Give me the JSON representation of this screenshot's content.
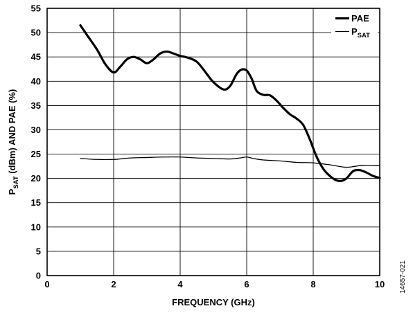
{
  "chart_data": {
    "type": "line",
    "xlabel": "FREQUENCY (GHz)",
    "ylabel": {
      "parts": [
        "P",
        "SAT",
        " (dBm) AND PAE (%)"
      ]
    },
    "xlim": [
      0,
      10
    ],
    "ylim": [
      0,
      55
    ],
    "xticks": [
      0,
      2,
      4,
      6,
      8,
      10
    ],
    "yticks": [
      0,
      5,
      10,
      15,
      20,
      25,
      30,
      35,
      40,
      45,
      50,
      55
    ],
    "grid": true,
    "legend_position": "top-right",
    "figure_id": "14657-021",
    "series": [
      {
        "name": "PAE",
        "name_parts": [
          "PAE",
          ""
        ],
        "color": "#000000",
        "style": "thick",
        "x": [
          1.0,
          1.2,
          1.5,
          1.75,
          2.0,
          2.2,
          2.4,
          2.6,
          2.8,
          3.0,
          3.2,
          3.4,
          3.6,
          3.8,
          4.0,
          4.2,
          4.5,
          4.8,
          5.0,
          5.3,
          5.5,
          5.7,
          5.85,
          6.0,
          6.15,
          6.3,
          6.5,
          6.7,
          6.9,
          7.1,
          7.3,
          7.5,
          7.7,
          7.9,
          8.1,
          8.3,
          8.5,
          8.7,
          8.85,
          9.0,
          9.2,
          9.4,
          9.6,
          9.8,
          10.0
        ],
        "values": [
          51.5,
          49.5,
          46.5,
          43.5,
          41.8,
          43.0,
          44.5,
          45.0,
          44.5,
          43.7,
          44.5,
          45.7,
          46.1,
          45.7,
          45.2,
          44.9,
          44.0,
          41.5,
          39.8,
          38.3,
          39.0,
          41.5,
          42.4,
          42.2,
          40.5,
          38.0,
          37.2,
          37.1,
          36.0,
          34.5,
          33.2,
          32.3,
          31.0,
          28.0,
          24.5,
          22.0,
          20.5,
          19.6,
          19.5,
          20.0,
          21.5,
          21.7,
          21.2,
          20.5,
          20.1
        ]
      },
      {
        "name": "PSAT",
        "name_parts": [
          "P",
          "SAT"
        ],
        "color": "#000000",
        "style": "thin",
        "x": [
          1.0,
          1.5,
          2.0,
          2.5,
          3.0,
          3.5,
          4.0,
          4.5,
          5.0,
          5.5,
          5.8,
          6.0,
          6.2,
          6.5,
          7.0,
          7.5,
          8.0,
          8.5,
          9.0,
          9.5,
          10.0
        ],
        "values": [
          24.1,
          23.9,
          23.9,
          24.2,
          24.3,
          24.4,
          24.4,
          24.2,
          24.1,
          24.0,
          24.2,
          24.4,
          24.1,
          23.8,
          23.6,
          23.3,
          23.2,
          22.8,
          22.3,
          22.7,
          22.6
        ]
      }
    ]
  }
}
